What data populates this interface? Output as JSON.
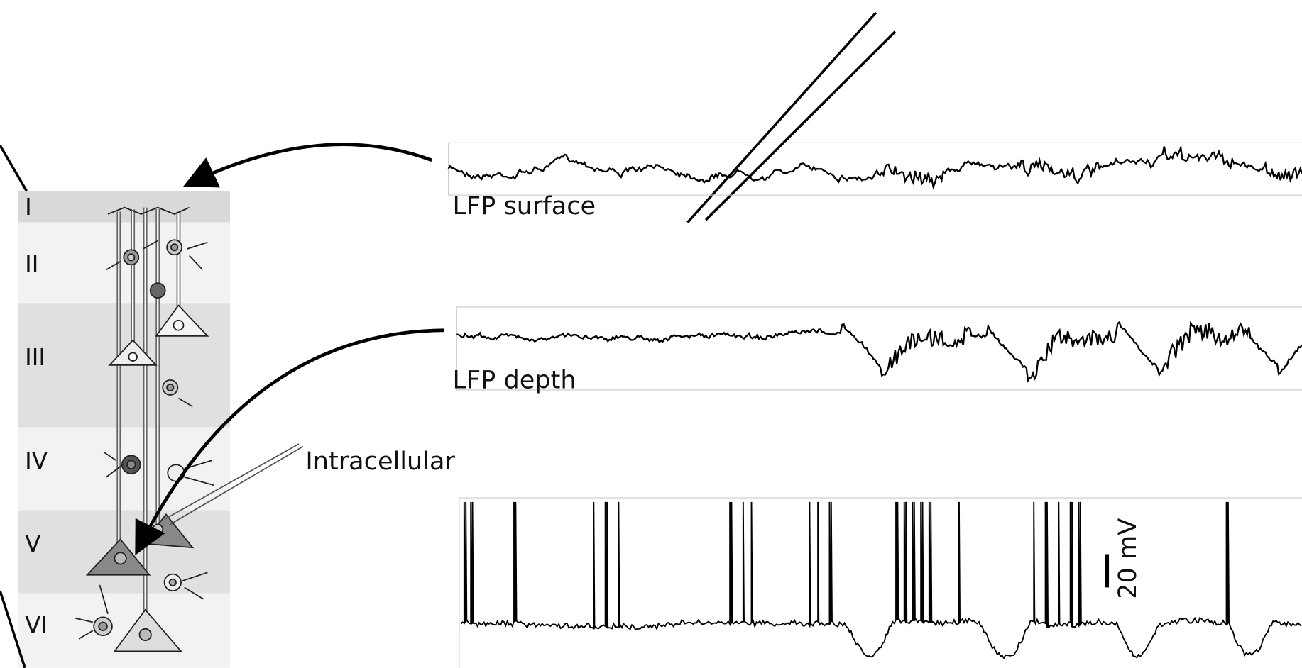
{
  "layers": [
    "I",
    "II",
    "III",
    "IV",
    "V",
    "VI"
  ],
  "traces": {
    "surface": "LFP surface",
    "depth": "LFP depth",
    "intracellular": "Intracellular"
  },
  "scale_bar": "20 mV"
}
